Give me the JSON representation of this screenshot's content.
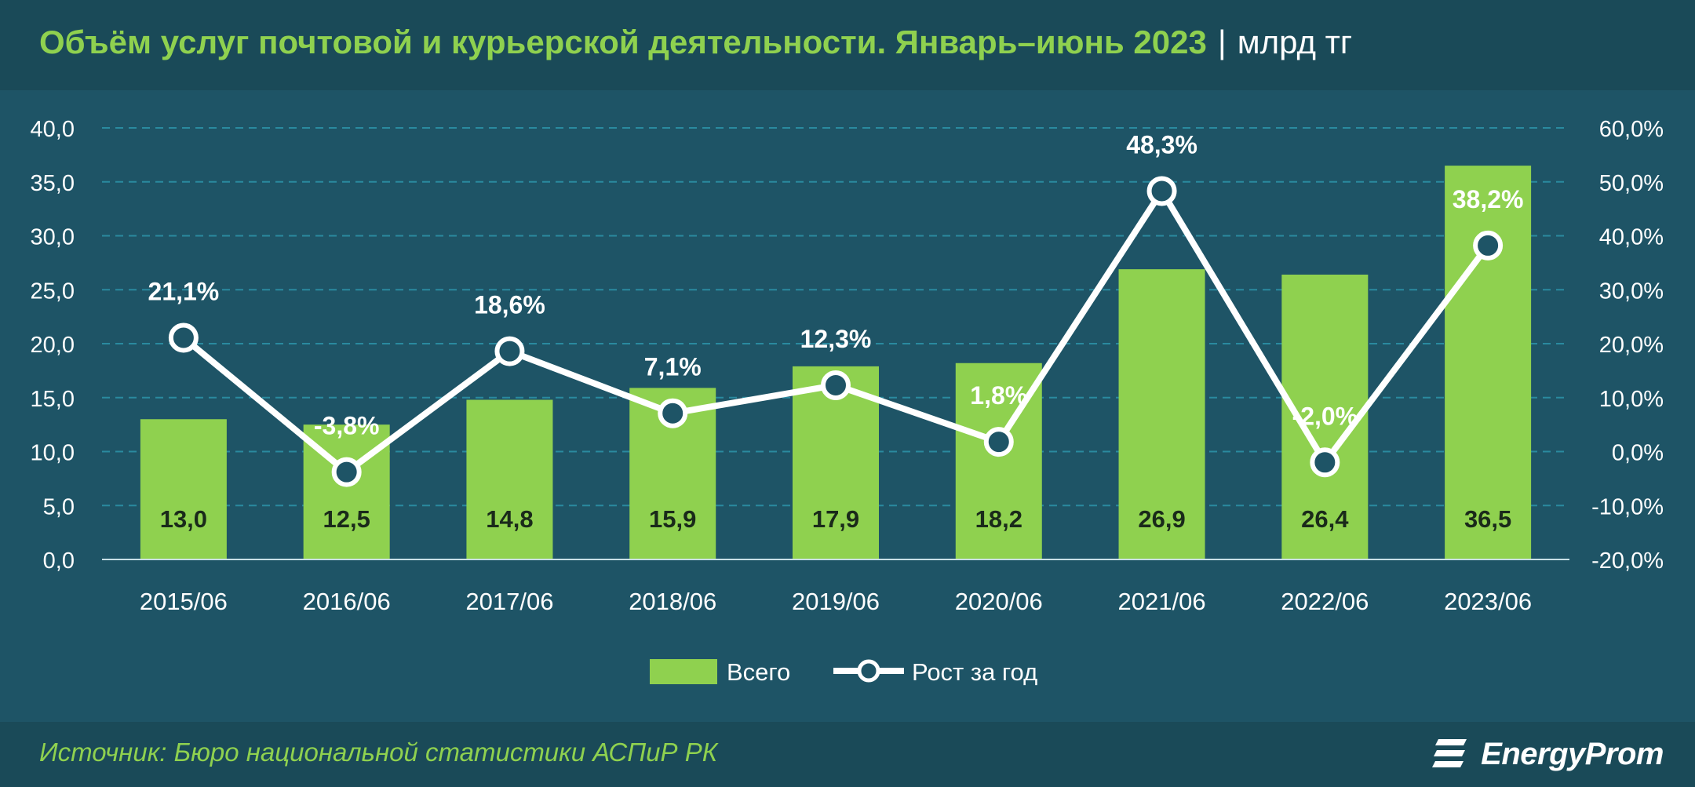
{
  "header": {
    "title": "Объём услуг почтовой и курьерской деятельности. Январь–июнь 2023",
    "separator": "|",
    "unit": "млрд тг"
  },
  "footer": {
    "source": "Источник: Бюро национальной статистики АСПиР РК",
    "logo_text": "EnergyProm",
    "logo_icon": "energyprom-logo-icon"
  },
  "colors": {
    "bar": "#8fd14f",
    "line": "#ffffff",
    "title": "#8fd14f",
    "background": "#1e5466",
    "grid": "#2a8a9f"
  },
  "chart_data": {
    "type": "bar",
    "categories": [
      "2015/06",
      "2016/06",
      "2017/06",
      "2018/06",
      "2019/06",
      "2020/06",
      "2021/06",
      "2022/06",
      "2023/06"
    ],
    "series": [
      {
        "name": "Всего",
        "type": "bar",
        "axis": "left",
        "values": [
          13.0,
          12.5,
          14.8,
          15.9,
          17.9,
          18.2,
          26.9,
          26.4,
          36.5
        ],
        "labels": [
          "13,0",
          "12,5",
          "14,8",
          "15,9",
          "17,9",
          "18,2",
          "26,9",
          "26,4",
          "36,5"
        ]
      },
      {
        "name": "Рост за год",
        "type": "line",
        "axis": "right",
        "values": [
          21.1,
          -3.8,
          18.6,
          7.1,
          12.3,
          1.8,
          48.3,
          -2.0,
          38.2
        ],
        "labels": [
          "21,1%",
          "-3,8%",
          "18,6%",
          "7,1%",
          "12,3%",
          "1,8%",
          "48,3%",
          "-2,0%",
          "38,2%"
        ]
      }
    ],
    "y_left": {
      "ylim": [
        0,
        40
      ],
      "ticks": [
        "0,0",
        "5,0",
        "10,0",
        "15,0",
        "20,0",
        "25,0",
        "30,0",
        "35,0",
        "40,0"
      ]
    },
    "y_right": {
      "ylim": [
        -20,
        60
      ],
      "ticks": [
        "-20,0%",
        "-10,0%",
        "0,0%",
        "10,0%",
        "20,0%",
        "30,0%",
        "40,0%",
        "50,0%",
        "60,0%"
      ]
    },
    "grid": true,
    "legend": "bottom-center"
  }
}
